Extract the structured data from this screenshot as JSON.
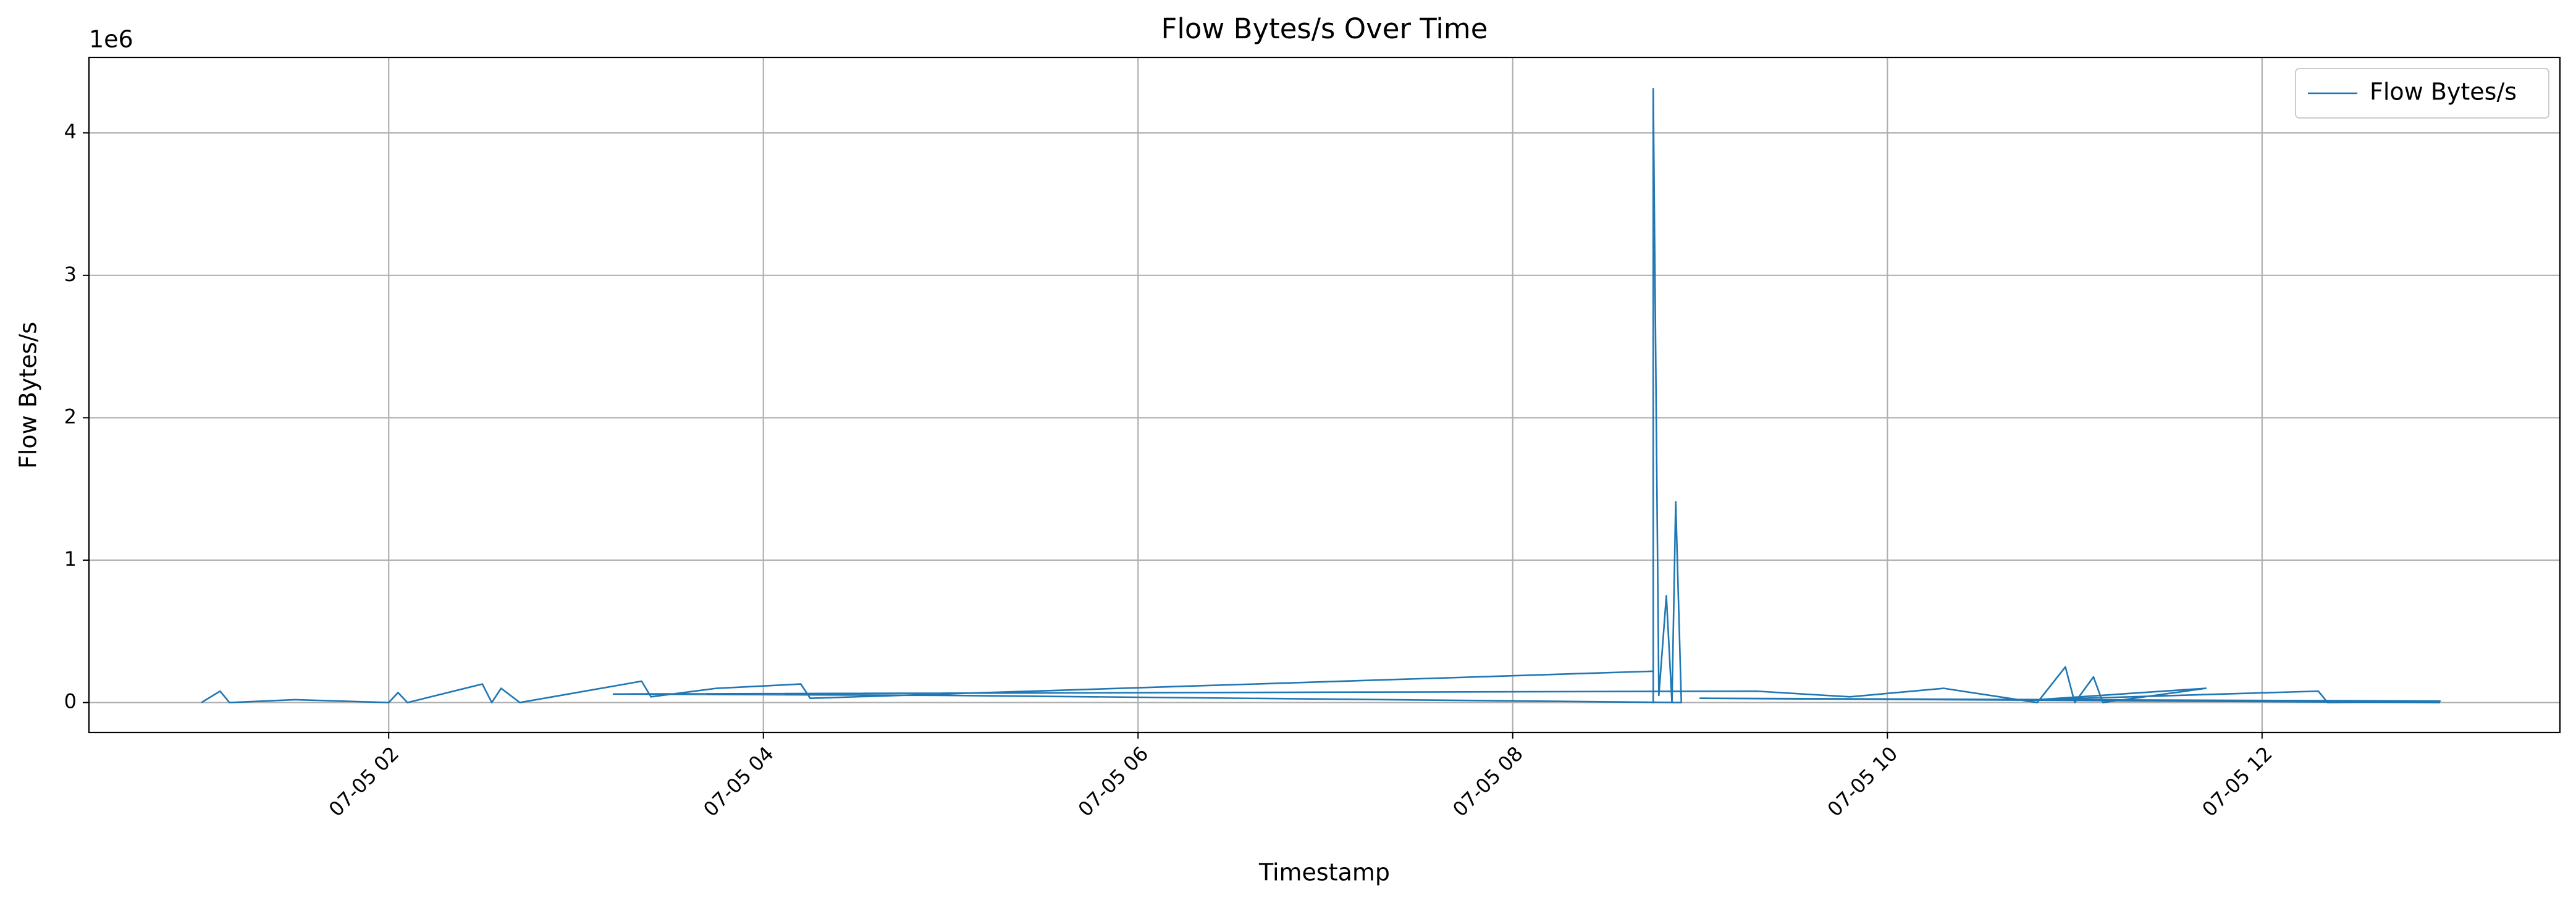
{
  "chart_data": {
    "type": "line",
    "title": "Flow Bytes/s Over Time",
    "x_label": "Timestamp",
    "y_label": "Flow Bytes/s",
    "y_offset_label": "1e6",
    "x": [
      1.0,
      1.1,
      1.15,
      1.5,
      2.0,
      2.05,
      2.1,
      2.5,
      2.55,
      2.6,
      2.7,
      3.35,
      3.4,
      3.75,
      4.2,
      4.25,
      8.75,
      8.75,
      8.75,
      8.78,
      8.82,
      8.85,
      8.87,
      8.9,
      5.0,
      3.2,
      9.3,
      9.8,
      10.3,
      10.8,
      10.95,
      11.0,
      11.1,
      11.15,
      11.7,
      10.8,
      12.3,
      12.35,
      12.95,
      9.0,
      12.95
    ],
    "series": [
      {
        "name": "Flow Bytes/s",
        "color": "#1f77b4",
        "values": [
          0,
          0.08,
          0,
          0.02,
          0,
          0.07,
          0,
          0.13,
          0,
          0.1,
          0,
          0.15,
          0.04,
          0.1,
          0.13,
          0.03,
          0.22,
          0,
          4.31,
          0.05,
          0.75,
          0,
          1.41,
          0,
          0.05,
          0.06,
          0.08,
          0.04,
          0.1,
          0,
          0.25,
          0,
          0.18,
          0,
          0.1,
          0.02,
          0.08,
          0,
          0.01,
          0.03,
          0
        ]
      }
    ],
    "xlim": [
      0.4,
      13.59
    ],
    "xticks": [
      {
        "value": 2,
        "label": "07-05 02"
      },
      {
        "value": 4,
        "label": "07-05 04"
      },
      {
        "value": 6,
        "label": "07-05 06"
      },
      {
        "value": 8,
        "label": "07-05 08"
      },
      {
        "value": 10,
        "label": "07-05 10"
      },
      {
        "value": 12,
        "label": "07-05 12"
      }
    ],
    "ylim": [
      -0.21,
      4.53
    ],
    "yticks": [
      0,
      1,
      2,
      3,
      4
    ],
    "grid": true,
    "legend": "upper right"
  }
}
